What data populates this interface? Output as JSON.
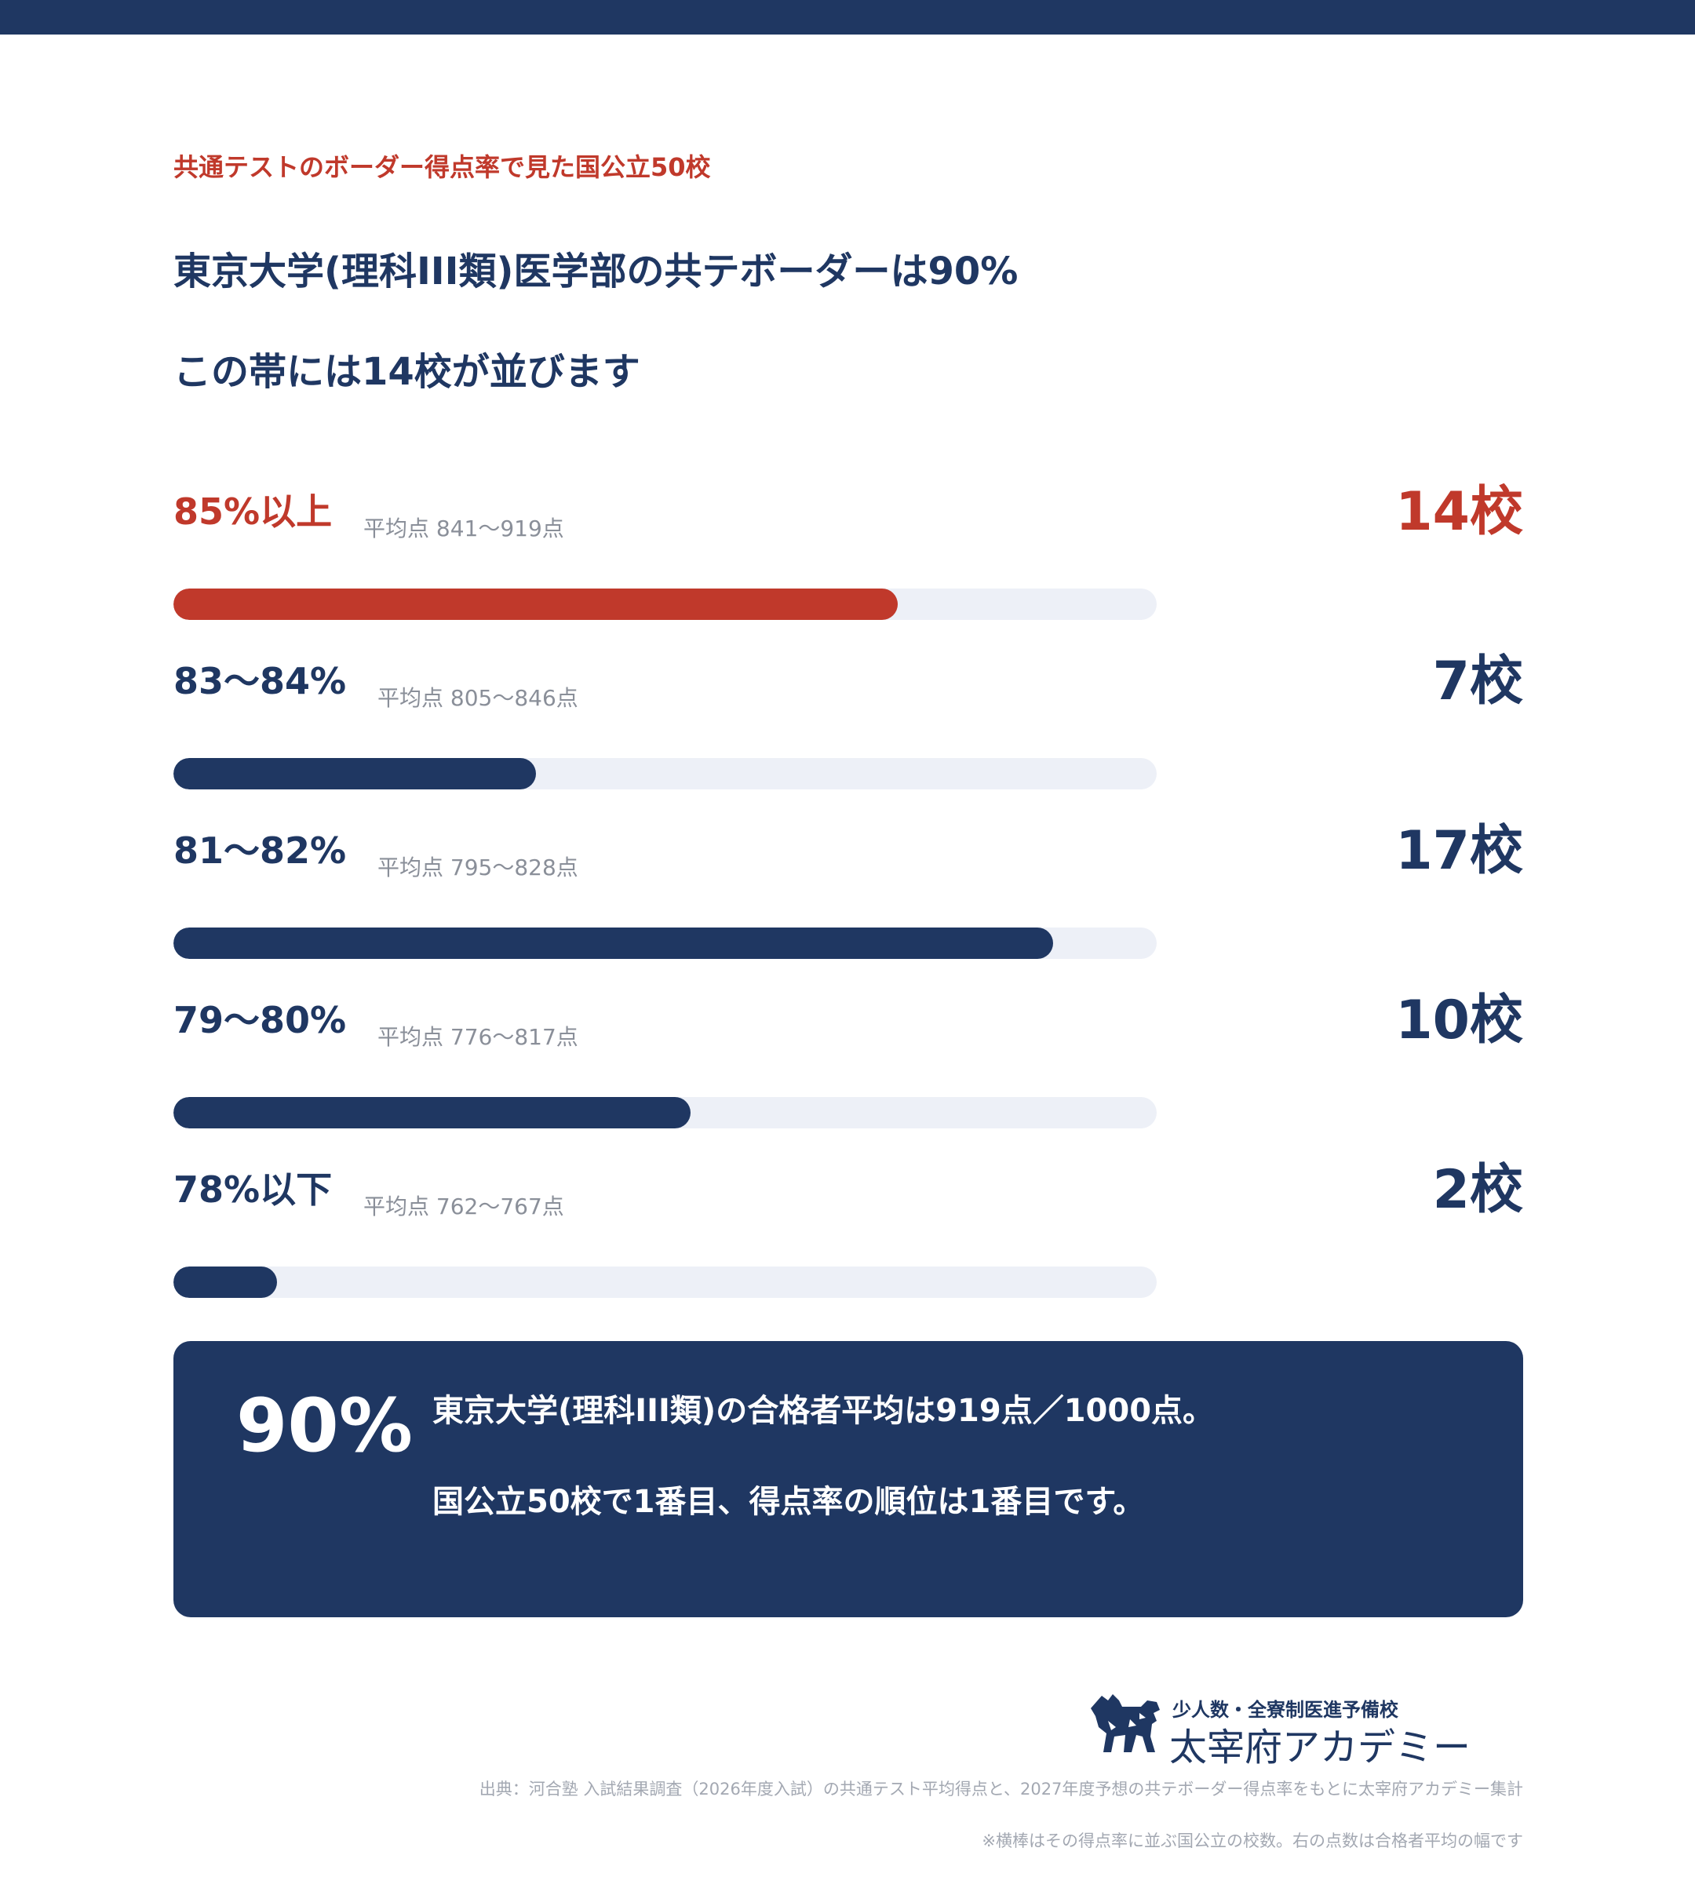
{
  "header": {
    "eyebrow": "共通テストのボーダー得点率で見た国公立50校",
    "headline_1": "東京大学(理科III類)医学部の共テボーダーは90%",
    "headline_2": "この帯には14校が並びます"
  },
  "colors": {
    "navy": "#1f3762",
    "red": "#c0392b",
    "track": "#edf0f7"
  },
  "chart_data": {
    "type": "bar",
    "orientation": "horizontal",
    "categories": [
      "85%以上",
      "83〜84%",
      "81〜82%",
      "79〜80%",
      "78%以下"
    ],
    "values": [
      14,
      7,
      17,
      10,
      2
    ],
    "xlim": [
      0,
      19
    ],
    "highlight_index": 0,
    "rows": [
      {
        "label": "85%以上",
        "sub": "平均点 841〜919点",
        "count_label": "14校",
        "value": 14,
        "highlight": true
      },
      {
        "label": "83〜84%",
        "sub": "平均点 805〜846点",
        "count_label": "7校",
        "value": 7,
        "highlight": false
      },
      {
        "label": "81〜82%",
        "sub": "平均点 795〜828点",
        "count_label": "17校",
        "value": 17,
        "highlight": false
      },
      {
        "label": "79〜80%",
        "sub": "平均点 776〜817点",
        "count_label": "10校",
        "value": 10,
        "highlight": false
      },
      {
        "label": "78%以下",
        "sub": "平均点 762〜767点",
        "count_label": "2校",
        "value": 2,
        "highlight": false
      }
    ]
  },
  "callout": {
    "big": "90%",
    "line_1": "東京大学(理科III類)の合格者平均は919点／1000点。",
    "line_2": "国公立50校で1番目、得点率の順位は1番目です。"
  },
  "logo": {
    "tagline": "少人数・全寮制医進予備校",
    "name": "太宰府アカデミー",
    "icon": "dog-silhouette-icon"
  },
  "footer": {
    "source": "出典：河合塾 入試結果調査（2026年度入試）の共通テスト平均得点と、2027年度予想の共テボーダー得点率をもとに太宰府アカデミー集計",
    "note": "※横棒はその得点率に並ぶ国公立の校数。右の点数は合格者平均の幅です"
  }
}
